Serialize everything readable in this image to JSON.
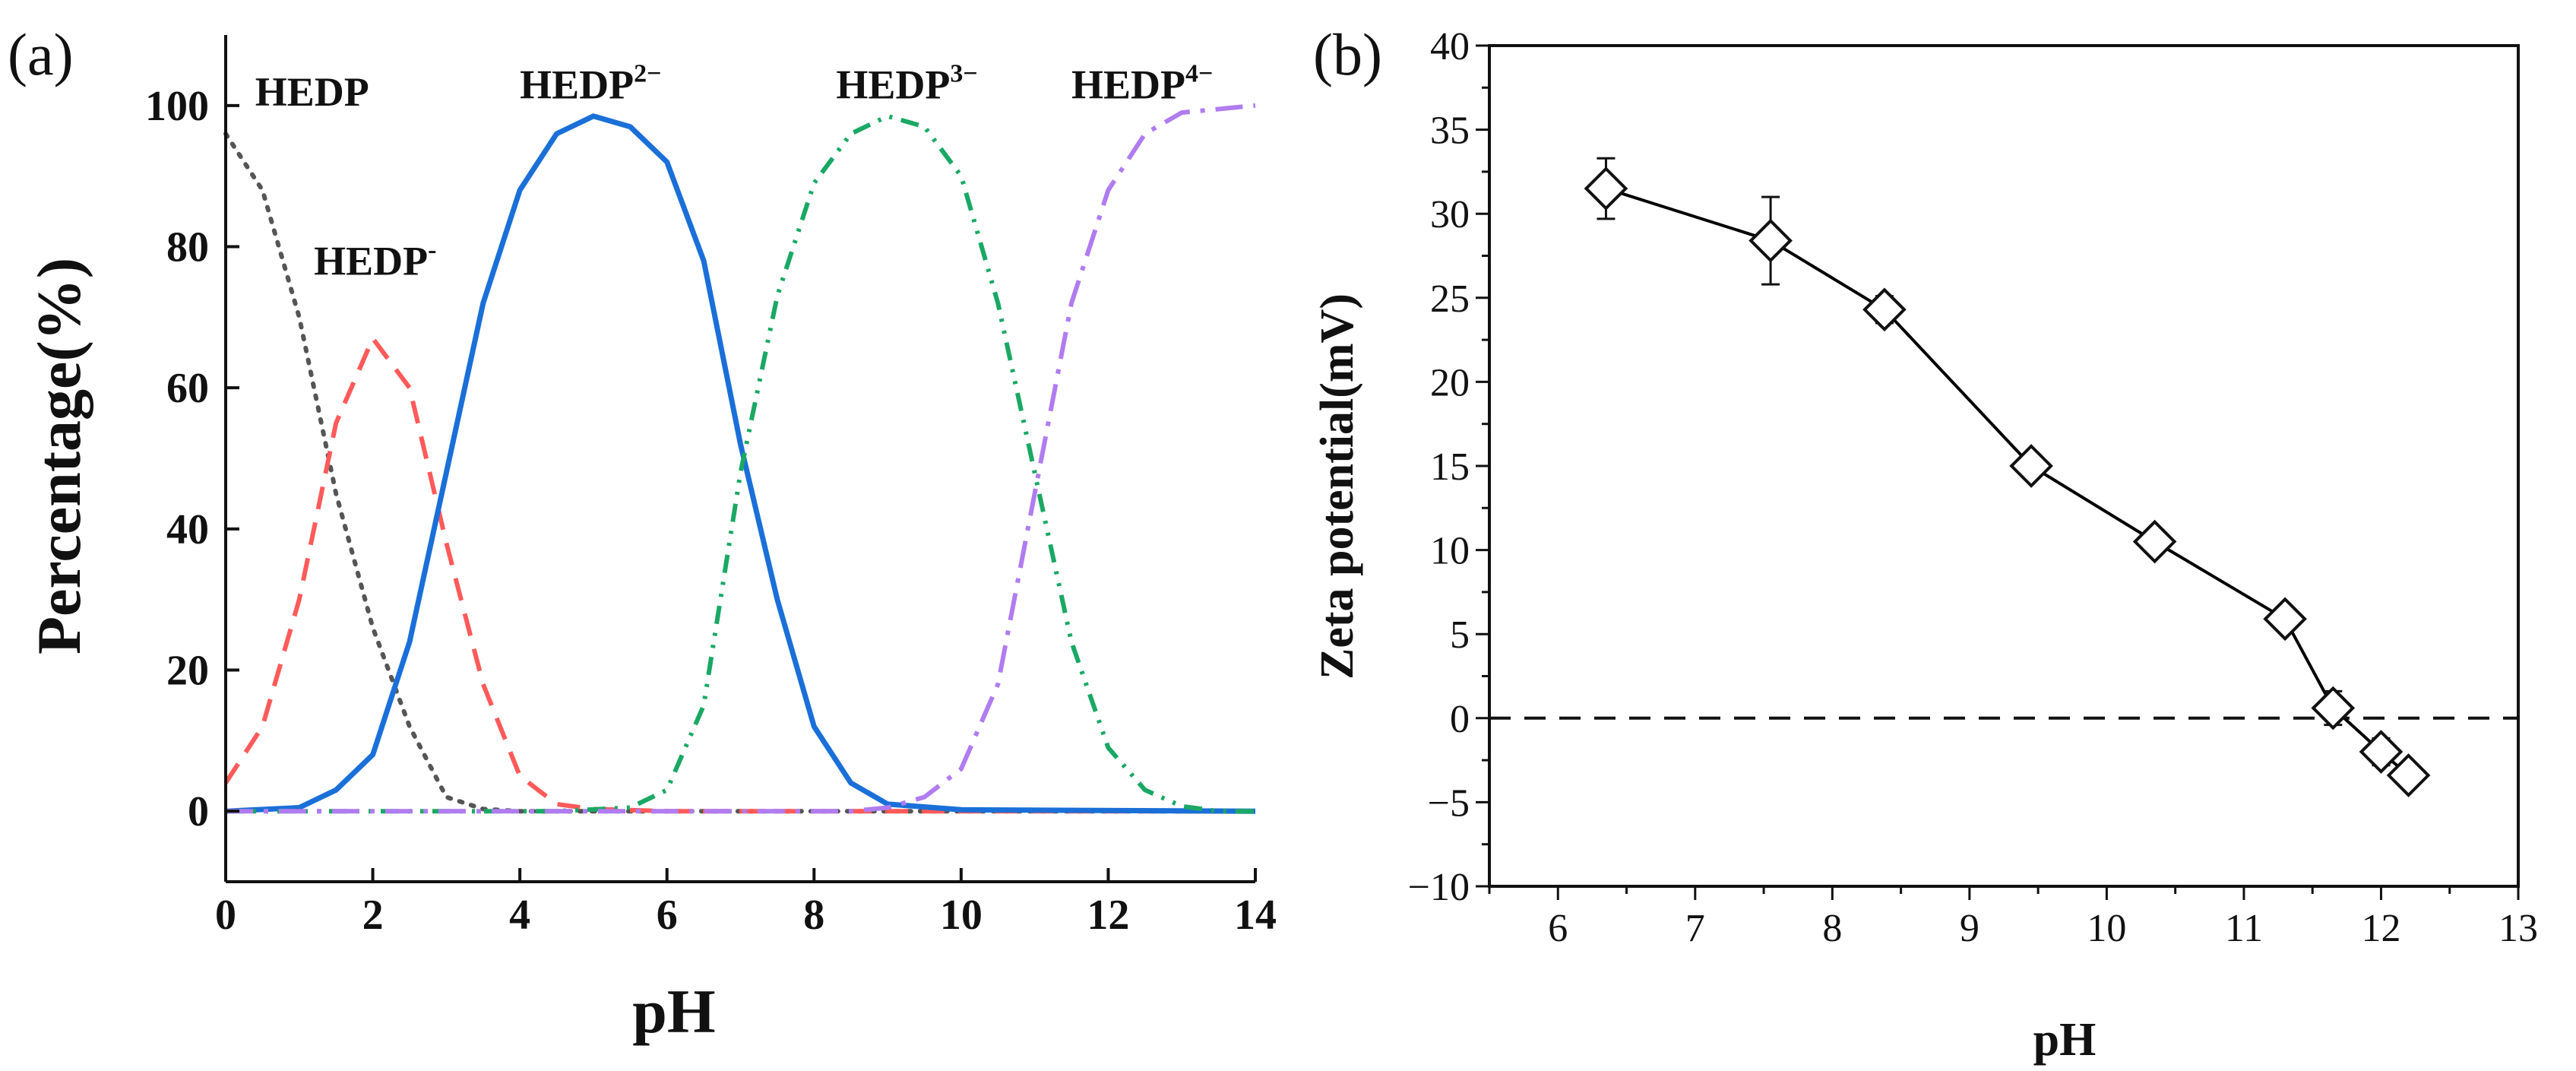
{
  "chart_data": [
    {
      "panel": "(a)",
      "type": "line",
      "title": "",
      "xlabel": "pH",
      "ylabel": "Percentage(%)",
      "xlim": [
        0,
        14
      ],
      "ylim": [
        -10,
        110
      ],
      "xticks": [
        0,
        2,
        4,
        6,
        8,
        10,
        12,
        14
      ],
      "yticks": [
        0,
        20,
        40,
        60,
        80,
        100
      ],
      "xtick_labels": [
        "0",
        "2",
        "4",
        "6",
        "8",
        "10",
        "12",
        "14"
      ],
      "ytick_labels": [
        "0",
        "20",
        "40",
        "60",
        "80",
        "100"
      ],
      "grid": false,
      "series": [
        {
          "name": "HEDP",
          "style": "dotted",
          "color": "#555555",
          "points": [
            [
              0.0,
              96
            ],
            [
              0.5,
              88
            ],
            [
              1.0,
              70
            ],
            [
              1.5,
              45
            ],
            [
              2.0,
              26
            ],
            [
              2.5,
              12
            ],
            [
              3.0,
              2
            ],
            [
              3.5,
              0.3
            ],
            [
              4.0,
              0
            ],
            [
              14.0,
              0
            ]
          ]
        },
        {
          "name": "HEDP-",
          "style": "dashed",
          "color": "#ff5a5a",
          "points": [
            [
              0.0,
              4
            ],
            [
              0.5,
              12
            ],
            [
              1.0,
              30
            ],
            [
              1.5,
              55
            ],
            [
              2.0,
              67
            ],
            [
              2.5,
              60
            ],
            [
              3.0,
              38
            ],
            [
              3.5,
              18
            ],
            [
              4.0,
              5
            ],
            [
              4.5,
              1
            ],
            [
              5.0,
              0.3
            ],
            [
              6.0,
              0
            ],
            [
              14.0,
              0
            ]
          ]
        },
        {
          "name": "HEDP2-",
          "style": "solid",
          "color": "#1a6fd8",
          "points": [
            [
              0.0,
              0
            ],
            [
              1.0,
              0.5
            ],
            [
              1.5,
              3
            ],
            [
              2.0,
              8
            ],
            [
              2.5,
              24
            ],
            [
              3.0,
              48
            ],
            [
              3.5,
              72
            ],
            [
              4.0,
              88
            ],
            [
              4.5,
              96
            ],
            [
              5.0,
              98.5
            ],
            [
              5.5,
              97
            ],
            [
              6.0,
              92
            ],
            [
              6.5,
              78
            ],
            [
              7.0,
              52
            ],
            [
              7.5,
              30
            ],
            [
              8.0,
              12
            ],
            [
              8.5,
              4
            ],
            [
              9.0,
              1
            ],
            [
              10.0,
              0.2
            ],
            [
              14.0,
              0
            ]
          ]
        },
        {
          "name": "HEDP3-",
          "style": "dash-dot-dot",
          "color": "#1aa864",
          "points": [
            [
              0.0,
              0
            ],
            [
              4.5,
              0
            ],
            [
              5.5,
              0.5
            ],
            [
              6.0,
              3
            ],
            [
              6.5,
              15
            ],
            [
              7.0,
              48
            ],
            [
              7.5,
              73
            ],
            [
              8.0,
              89
            ],
            [
              8.5,
              96
            ],
            [
              9.0,
              98.5
            ],
            [
              9.5,
              97
            ],
            [
              10.0,
              90
            ],
            [
              10.5,
              72
            ],
            [
              11.0,
              48
            ],
            [
              11.5,
              24
            ],
            [
              12.0,
              9
            ],
            [
              12.5,
              3
            ],
            [
              13.0,
              0.7
            ],
            [
              13.5,
              0
            ],
            [
              14.0,
              0
            ]
          ]
        },
        {
          "name": "HEDP4-",
          "style": "dash-dot",
          "color": "#b07cf0",
          "points": [
            [
              0.0,
              0
            ],
            [
              8.5,
              0
            ],
            [
              9.0,
              0.5
            ],
            [
              9.5,
              2
            ],
            [
              10.0,
              6
            ],
            [
              10.5,
              18
            ],
            [
              11.0,
              45
            ],
            [
              11.5,
              72
            ],
            [
              12.0,
              88
            ],
            [
              12.5,
              96
            ],
            [
              13.0,
              99
            ],
            [
              14.0,
              100
            ]
          ]
        }
      ],
      "annotations": [
        {
          "base": "HEDP",
          "sup": "",
          "at": [
            0.4,
            100
          ]
        },
        {
          "base": "HEDP",
          "sup": "-",
          "at": [
            1.2,
            76
          ]
        },
        {
          "base": "HEDP",
          "sup": "2−",
          "at": [
            4.0,
            101
          ]
        },
        {
          "base": "HEDP",
          "sup": "3−",
          "at": [
            8.3,
            101
          ]
        },
        {
          "base": "HEDP",
          "sup": "4−",
          "at": [
            11.5,
            101
          ]
        }
      ]
    },
    {
      "panel": "(b)",
      "type": "line",
      "title": "",
      "xlabel": "pH",
      "ylabel": "Zeta potential(mV)",
      "xlim": [
        5.5,
        13
      ],
      "ylim": [
        -10,
        40
      ],
      "xticks": [
        6,
        7,
        8,
        9,
        10,
        11,
        12,
        13
      ],
      "yticks": [
        -10,
        -5,
        0,
        5,
        10,
        15,
        20,
        25,
        30,
        35,
        40
      ],
      "xtick_labels": [
        "6",
        "7",
        "8",
        "9",
        "10",
        "11",
        "12",
        "13"
      ],
      "ytick_labels": [
        "−10",
        "−5",
        "0",
        "5",
        "10",
        "15",
        "20",
        "25",
        "30",
        "35",
        "40"
      ],
      "grid": false,
      "reference_line": {
        "y": 0,
        "style": "dashed"
      },
      "series": [
        {
          "name": "Zeta potential",
          "marker": "open-diamond",
          "color": "#000000",
          "x": [
            6.35,
            7.55,
            8.38,
            9.45,
            10.35,
            11.3,
            11.65,
            12.0,
            12.2
          ],
          "y": [
            31.5,
            28.4,
            24.3,
            15.0,
            10.5,
            5.9,
            0.6,
            -2.0,
            -3.4
          ],
          "error": [
            1.8,
            2.6,
            0.8,
            0.7,
            0.7,
            0.6,
            1.0,
            0.8,
            0.6
          ]
        }
      ]
    }
  ]
}
